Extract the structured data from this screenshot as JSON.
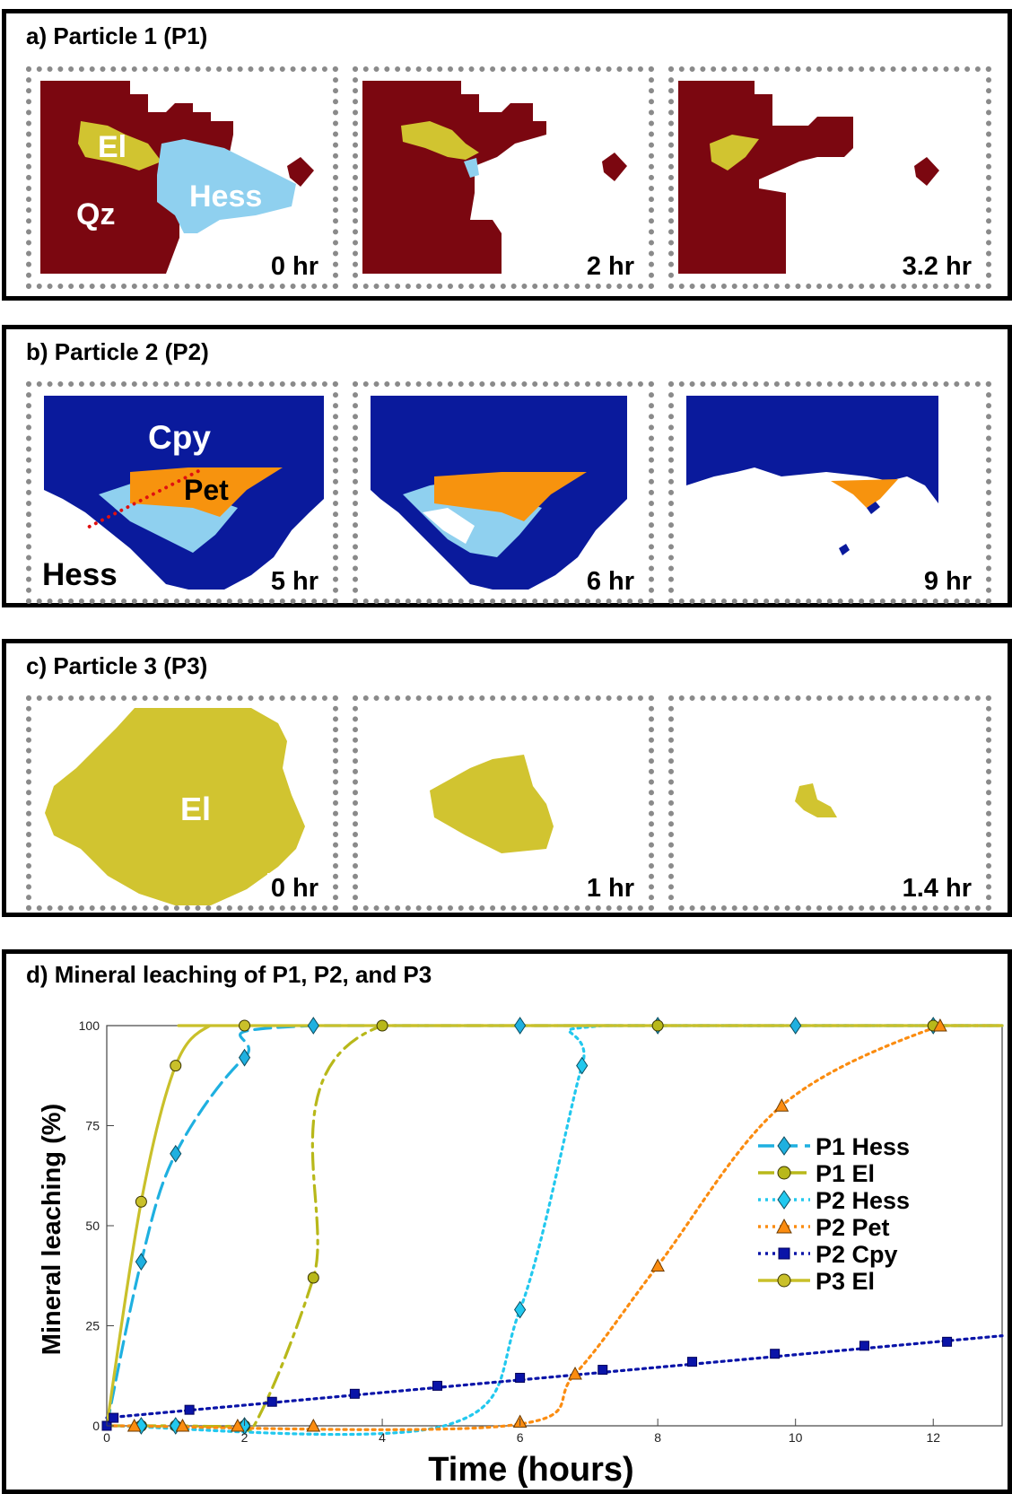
{
  "panels": {
    "a": {
      "title": "a) Particle 1 (P1)",
      "times": [
        "0 hr",
        "2 hr",
        "3.2 hr"
      ],
      "labels": {
        "el": "El",
        "qz": "Qz",
        "hess": "Hess"
      }
    },
    "b": {
      "title": "b) Particle 2 (P2)",
      "times": [
        "5 hr",
        "6 hr",
        "9 hr"
      ],
      "labels": {
        "cpy": "Cpy",
        "pet": "Pet",
        "hess": "Hess"
      }
    },
    "c": {
      "title": "c) Particle 3 (P3)",
      "times": [
        "0 hr",
        "1 hr",
        "1.4 hr"
      ],
      "labels": {
        "el": "El"
      }
    },
    "d": {
      "title": "d) Mineral leaching of P1, P2, and P3"
    }
  },
  "colors": {
    "qz": "#7b0710",
    "el": "#d1c430",
    "hess": "#8fd0ef",
    "cpy": "#0a1a9c",
    "pet": "#f7930e"
  },
  "chart_data": {
    "type": "line",
    "xlabel": "Time (hours)",
    "ylabel": "Mineral leaching (%)",
    "xlim": [
      0,
      13
    ],
    "ylim": [
      0,
      100
    ],
    "xticks": [
      0,
      2,
      4,
      6,
      8,
      10,
      12
    ],
    "yticks": [
      0,
      25,
      50,
      75,
      100
    ],
    "legend_position": "right",
    "series": [
      {
        "name": "P1 Hess",
        "color": "#1fb0e0",
        "dash": "long-dash",
        "marker": "diamond",
        "curve_x": [
          0,
          0.5,
          1,
          2,
          3,
          13
        ],
        "curve_y": [
          0,
          41,
          68,
          92,
          100,
          100
        ],
        "marker_x": [
          0.5,
          1,
          2,
          3,
          6,
          8,
          10,
          12
        ],
        "marker_y": [
          41,
          68,
          92,
          100,
          100,
          100,
          100,
          100
        ]
      },
      {
        "name": "P1 El",
        "color": "#b8b81a",
        "dash": "dash-dot",
        "marker": "circle",
        "curve_x": [
          0,
          0.5,
          1,
          1.9,
          2.2,
          3,
          4,
          13
        ],
        "curve_y": [
          0,
          0,
          0,
          0,
          2,
          37,
          100,
          100
        ],
        "marker_x": [
          0.5,
          1,
          2,
          3,
          4,
          8,
          12
        ],
        "marker_y": [
          0,
          0,
          0,
          37,
          100,
          100,
          100
        ]
      },
      {
        "name": "P2 Hess",
        "color": "#22c8ee",
        "dash": "dotted",
        "marker": "diamond",
        "curve_x": [
          0,
          4.9,
          6,
          6.9,
          7.2,
          13
        ],
        "curve_y": [
          0,
          0,
          29,
          90,
          100,
          100
        ],
        "marker_x": [
          0.5,
          1,
          2,
          6,
          6.9
        ],
        "marker_y": [
          0,
          0,
          0,
          29,
          90
        ]
      },
      {
        "name": "P2 Pet",
        "color": "#fb8c10",
        "dash": "dotted",
        "marker": "triangle",
        "curve_x": [
          0,
          5.8,
          6.8,
          8,
          9.8,
          12.1,
          13
        ],
        "curve_y": [
          0,
          0,
          13,
          40,
          80,
          100,
          100
        ],
        "marker_x": [
          0.4,
          1.1,
          1.9,
          3,
          6,
          6.8,
          8,
          9.8,
          12.1
        ],
        "marker_y": [
          0,
          0,
          0,
          0,
          1,
          13,
          40,
          80,
          100
        ]
      },
      {
        "name": "P2 Cpy",
        "color": "#0a14a8",
        "dash": "dotted",
        "marker": "square",
        "curve_x": [
          0,
          13
        ],
        "curve_y": [
          2,
          22.5
        ],
        "marker_x": [
          0,
          0.1,
          1.2,
          2.4,
          3.6,
          4.8,
          6,
          7.2,
          8.5,
          9.7,
          11,
          12.2
        ],
        "marker_y": [
          0,
          2,
          4,
          6,
          8,
          10,
          12,
          14,
          16,
          18,
          20,
          21
        ]
      },
      {
        "name": "P3 El",
        "color": "#c9c02a",
        "dash": "solid",
        "marker": "circle",
        "curve_x": [
          0,
          0.5,
          1,
          1.5,
          2,
          13
        ],
        "curve_y": [
          0,
          56,
          90,
          100,
          100,
          100
        ],
        "marker_x": [
          0.5,
          1,
          2
        ],
        "marker_y": [
          56,
          90,
          100
        ]
      }
    ]
  }
}
